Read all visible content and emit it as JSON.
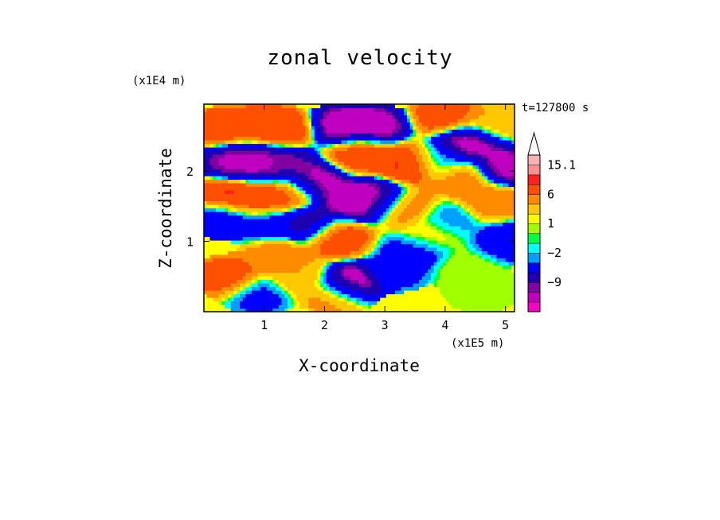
{
  "chart_data": {
    "type": "heatmap",
    "title": "zonal velocity",
    "xlabel": "X-coordinate",
    "ylabel": "Z-coordinate",
    "x_unit": "(x1E5 m)",
    "y_unit": "(x1E4 m)",
    "time_label": "t=127800 s",
    "xlim": [
      0,
      5.15
    ],
    "ylim": [
      0,
      2.95
    ],
    "x_ticks": [
      "1",
      "2",
      "3",
      "4",
      "5"
    ],
    "y_ticks": [
      "1",
      "2"
    ],
    "colorbar": {
      "labels": [
        "15.1",
        "6",
        "1",
        "-2",
        "-9"
      ],
      "colors": [
        "#ff00c0",
        "#c000c0",
        "#8000a0",
        "#1f00b0",
        "#0000ff",
        "#00a0ff",
        "#00ffff",
        "#00ff40",
        "#a0ff00",
        "#ffff00",
        "#ffc800",
        "#ff8c00",
        "#ff5000",
        "#ff2020",
        "#ff9090",
        "#ffb0b0"
      ]
    },
    "field": [
      {
        "x": 0.3,
        "z": 2.6,
        "v": 9
      },
      {
        "x": 0.9,
        "z": 2.7,
        "v": 7
      },
      {
        "x": 1.3,
        "z": 2.6,
        "v": 9
      },
      {
        "x": 0.5,
        "z": 2.15,
        "v": -11
      },
      {
        "x": 0.9,
        "z": 2.1,
        "v": -11
      },
      {
        "x": 1.3,
        "z": 2.1,
        "v": -10
      },
      {
        "x": 0.4,
        "z": 1.65,
        "v": 10
      },
      {
        "x": 0.9,
        "z": 1.6,
        "v": 9
      },
      {
        "x": 1.4,
        "z": 1.7,
        "v": 8
      },
      {
        "x": 0.3,
        "z": 1.35,
        "v": -5
      },
      {
        "x": 1.0,
        "z": 1.25,
        "v": -4
      },
      {
        "x": 0.4,
        "z": 0.5,
        "v": 8
      },
      {
        "x": 1.2,
        "z": 0.8,
        "v": 6
      },
      {
        "x": 0.9,
        "z": 0.25,
        "v": -3
      },
      {
        "x": 2.3,
        "z": 2.65,
        "v": -12
      },
      {
        "x": 2.8,
        "z": 2.65,
        "v": -12
      },
      {
        "x": 2.6,
        "z": 2.25,
        "v": 8
      },
      {
        "x": 3.4,
        "z": 2.1,
        "v": 10
      },
      {
        "x": 2.4,
        "z": 1.6,
        "v": -12
      },
      {
        "x": 2.9,
        "z": 1.6,
        "v": -12
      },
      {
        "x": 1.8,
        "z": 1.85,
        "v": -12
      },
      {
        "x": 3.3,
        "z": 1.5,
        "v": 7
      },
      {
        "x": 2.2,
        "z": 1.05,
        "v": 8
      },
      {
        "x": 2.4,
        "z": 0.4,
        "v": -14
      },
      {
        "x": 2.2,
        "z": 0.25,
        "v": 6
      },
      {
        "x": 3.2,
        "z": 0.6,
        "v": -3
      },
      {
        "x": 3.5,
        "z": 0.9,
        "v": -4
      },
      {
        "x": 3.7,
        "z": 1.1,
        "v": 3
      },
      {
        "x": 4.4,
        "z": 0.6,
        "v": 1
      },
      {
        "x": 4.6,
        "z": 0.3,
        "v": 0.5
      },
      {
        "x": 4.4,
        "z": 2.4,
        "v": -12
      },
      {
        "x": 4.0,
        "z": 2.8,
        "v": 8
      },
      {
        "x": 4.8,
        "z": 2.7,
        "v": 4
      },
      {
        "x": 5.0,
        "z": 2.05,
        "v": -12
      },
      {
        "x": 4.8,
        "z": 1.6,
        "v": 6
      },
      {
        "x": 4.3,
        "z": 1.9,
        "v": 6
      },
      {
        "x": 5.05,
        "z": 1.0,
        "v": -4
      },
      {
        "x": 3.9,
        "z": 2.15,
        "v": -2
      },
      {
        "x": 4.0,
        "z": 1.3,
        "v": -2
      },
      {
        "x": 1.7,
        "z": 1.25,
        "v": -8
      },
      {
        "x": 1.6,
        "z": 0.5,
        "v": 4
      }
    ]
  }
}
